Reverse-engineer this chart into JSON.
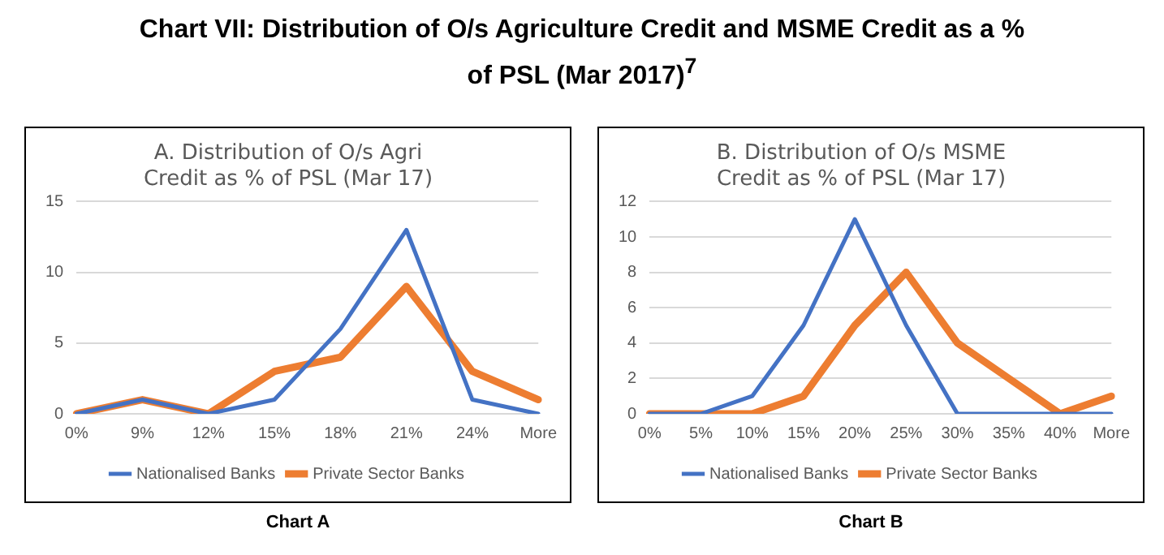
{
  "chart_data": [
    {
      "type": "other",
      "title": "Chart VII: Distribution of O/s Agriculture Credit and MSME Credit as a % of PSL (Mar 2017)$^{7}$"
    },
    {
      "type": "line",
      "title": "A. Distribution of O/s Agri Credit as % of PSL (Mar 17)",
      "categories": [
        "0%",
        "9%",
        "12%",
        "15%",
        "18%",
        "21%",
        "24%",
        "More"
      ],
      "series": [
        {
          "name": "Nationalised Banks",
          "color": "#4472c4",
          "values": [
            0,
            1,
            0,
            1,
            6,
            13,
            1,
            0
          ]
        },
        {
          "name": "Private Sector Banks",
          "color": "#ed7d31",
          "values": [
            0,
            1,
            0,
            3,
            4,
            9,
            3,
            1
          ]
        }
      ],
      "ylim": [
        0,
        15
      ],
      "yticks": [
        0,
        5,
        10,
        15
      ],
      "grid": "y",
      "legend": "bottom",
      "marker": "none",
      "annotations": [
        "Chart A"
      ]
    },
    {
      "type": "line",
      "title": "B. Distribution of O/s MSME Credit as % of PSL (Mar 17)",
      "categories": [
        "0%",
        "5%",
        "10%",
        "15%",
        "20%",
        "25%",
        "30%",
        "35%",
        "40%",
        "More"
      ],
      "series": [
        {
          "name": "Nationalised Banks",
          "color": "#4472c4",
          "values": [
            0,
            0,
            1,
            5,
            11,
            5,
            0,
            0,
            0,
            0
          ]
        },
        {
          "name": "Private Sector Banks",
          "color": "#ed7d31",
          "values": [
            0,
            0,
            0,
            1,
            5,
            8,
            4,
            2,
            0,
            1
          ]
        }
      ],
      "ylim": [
        0,
        12
      ],
      "yticks": [
        0,
        2,
        4,
        6,
        8,
        10,
        12
      ],
      "grid": "y",
      "legend": "bottom",
      "marker": "none",
      "annotations": [
        "Chart B"
      ]
    }
  ]
}
